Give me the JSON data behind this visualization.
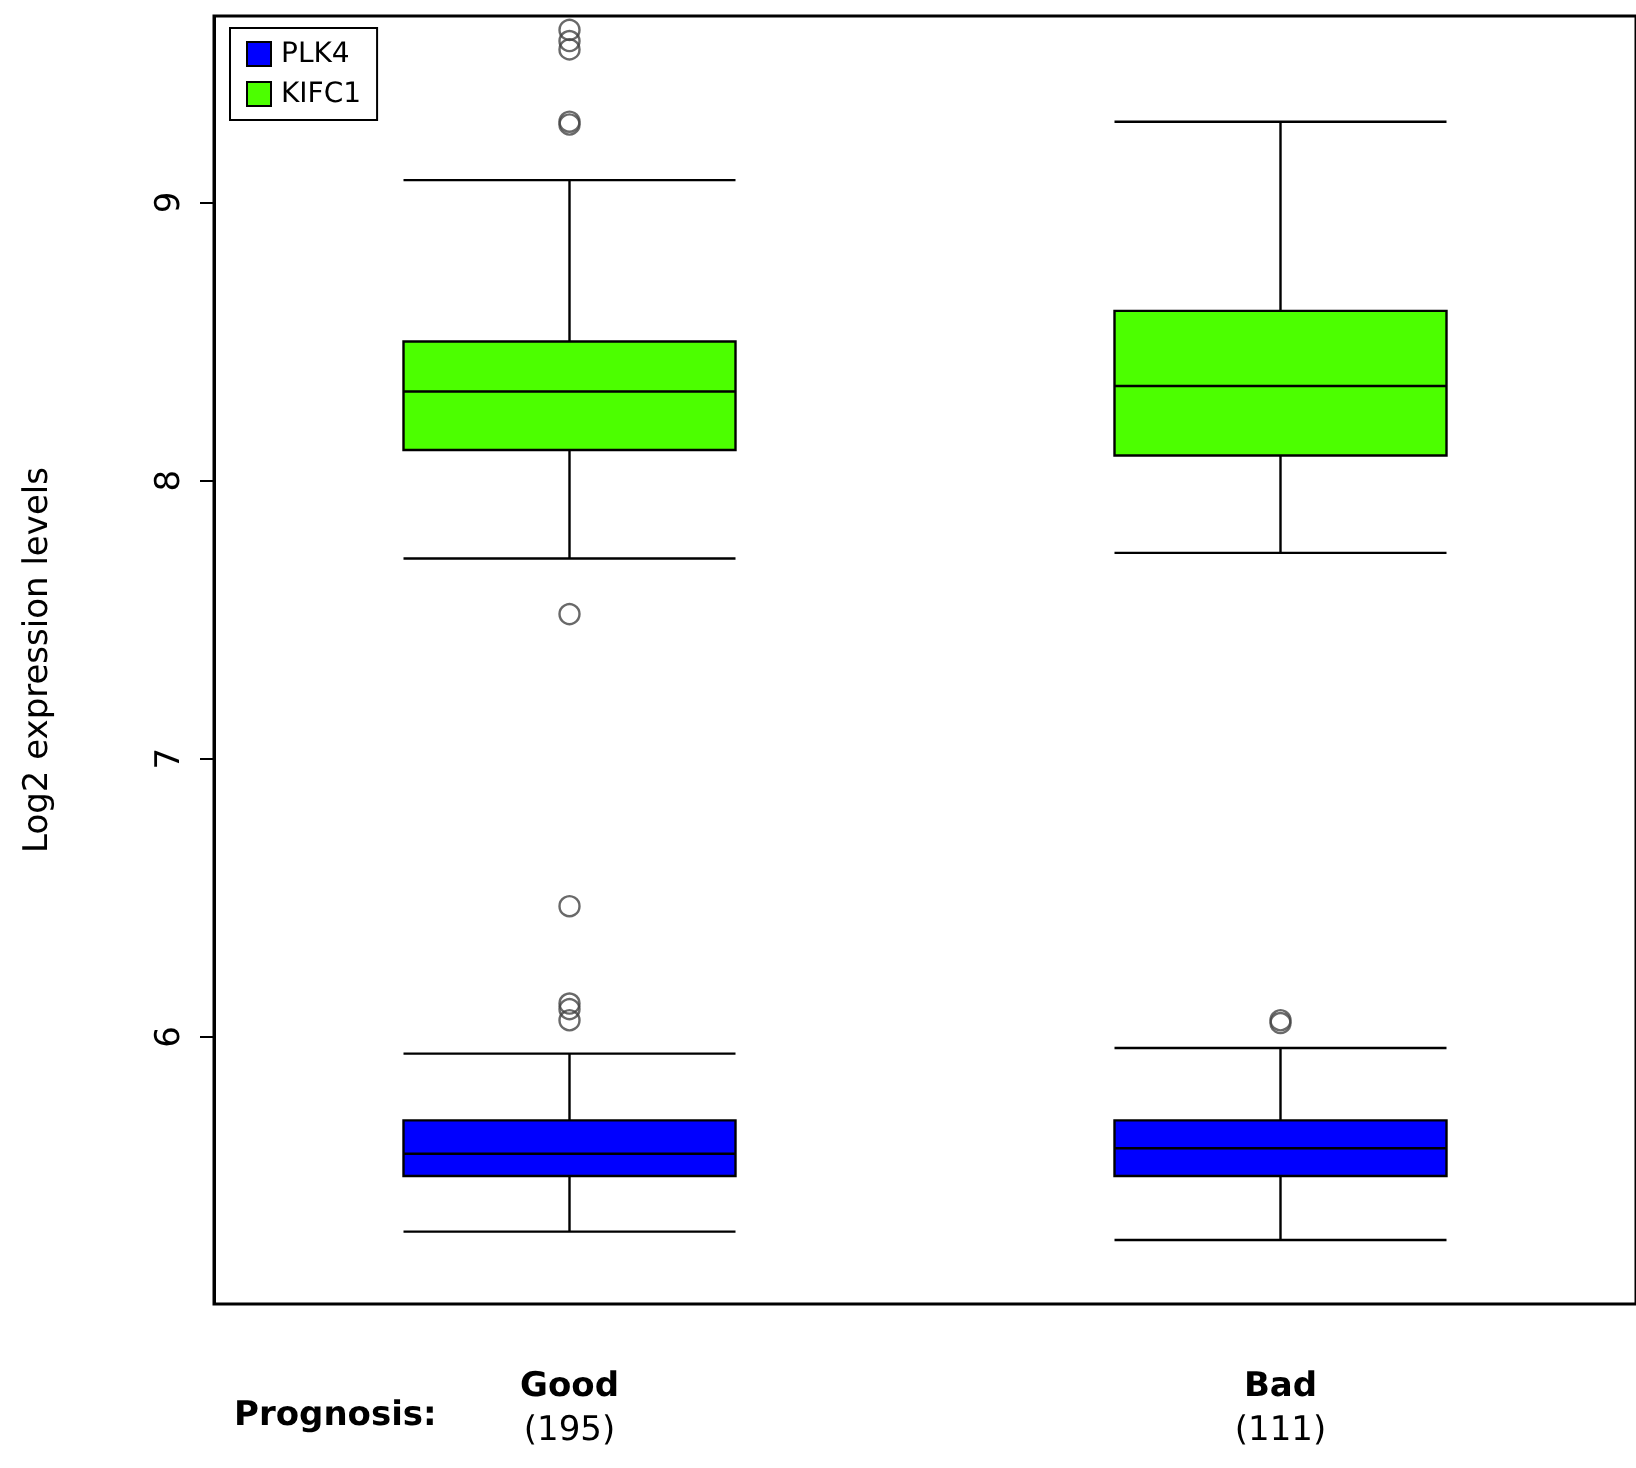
{
  "chart_data": {
    "type": "box",
    "xlabel": "Prognosis:",
    "ylabel": "Log2 expression levels",
    "categories": [
      "Good\n(195)",
      "Bad\n(111)"
    ],
    "ylim": [
      5.04,
      9.67
    ],
    "yticks": [
      6,
      7,
      8,
      9
    ],
    "grid": false,
    "legend": "top left",
    "series": [
      {
        "name": "PLK4",
        "color": "#0000ff",
        "boxes": [
          {
            "low": 5.3,
            "q1": 5.5,
            "median": 5.58,
            "q3": 5.7,
            "high": 5.94,
            "outliers": [
              6.47,
              6.12,
              6.1,
              6.06
            ]
          },
          {
            "low": 5.27,
            "q1": 5.5,
            "median": 5.6,
            "q3": 5.7,
            "high": 5.96,
            "outliers": [
              6.06,
              6.05
            ]
          }
        ]
      },
      {
        "name": "KIFC1",
        "color": "#4cff00",
        "boxes": [
          {
            "low": 7.72,
            "q1": 8.11,
            "median": 8.32,
            "q3": 8.5,
            "high": 9.08,
            "outliers": [
              9.62,
              9.58,
              9.55,
              9.29,
              9.28,
              7.52
            ]
          },
          {
            "low": 7.74,
            "q1": 8.09,
            "median": 8.34,
            "q3": 8.61,
            "high": 9.29
          }
        ]
      }
    ]
  }
}
